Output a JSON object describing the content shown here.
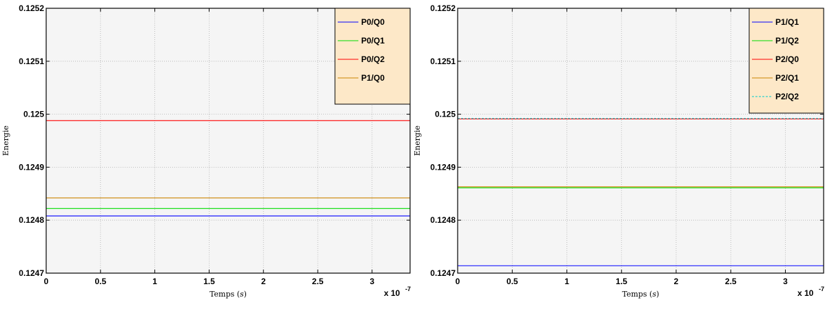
{
  "chart_data": [
    {
      "type": "line",
      "xlabel": "Temps (s)",
      "ylabel": "Energie",
      "x_multiplier_label": "x 10",
      "x_multiplier_exponent": "-7",
      "xlim": [
        0,
        3.35
      ],
      "ylim": [
        0.1247,
        0.1252
      ],
      "xticks": [
        0,
        0.5,
        1,
        1.5,
        2,
        2.5,
        3
      ],
      "xtick_labels": [
        "0",
        "0.5",
        "1",
        "1.5",
        "2",
        "2.5",
        "3"
      ],
      "yticks": [
        0.1247,
        0.1248,
        0.1249,
        0.125,
        0.1251,
        0.1252
      ],
      "ytick_labels": [
        "0.1247",
        "0.1248",
        "0.1249",
        "0.125",
        "0.1251",
        "0.1252"
      ],
      "grid": true,
      "legend_position": "top-right",
      "series": [
        {
          "name": "P0/Q0",
          "color": "#0000ff",
          "dash": "solid",
          "x": [
            0,
            3.35
          ],
          "y": [
            0.124808,
            0.124808
          ]
        },
        {
          "name": "P0/Q1",
          "color": "#00dd00",
          "dash": "solid",
          "x": [
            0,
            3.35
          ],
          "y": [
            0.124822,
            0.124822
          ]
        },
        {
          "name": "P0/Q2",
          "color": "#ff0000",
          "dash": "solid",
          "x": [
            0,
            3.35
          ],
          "y": [
            0.124988,
            0.124988
          ]
        },
        {
          "name": "P1/Q0",
          "color": "#cc8400",
          "dash": "solid",
          "x": [
            0,
            3.35
          ],
          "y": [
            0.124842,
            0.124842
          ]
        }
      ]
    },
    {
      "type": "line",
      "xlabel": "Temps (s)",
      "ylabel": "Energie",
      "x_multiplier_label": "x 10",
      "x_multiplier_exponent": "-7",
      "xlim": [
        0,
        3.35
      ],
      "ylim": [
        0.1247,
        0.1252
      ],
      "xticks": [
        0,
        0.5,
        1,
        1.5,
        2,
        2.5,
        3
      ],
      "xtick_labels": [
        "0",
        "0.5",
        "1",
        "1.5",
        "2",
        "2.5",
        "3"
      ],
      "yticks": [
        0.1247,
        0.1248,
        0.1249,
        0.125,
        0.1251,
        0.1252
      ],
      "ytick_labels": [
        "0.1247",
        "0.1248",
        "0.1249",
        "0.125",
        "0.1251",
        "0.1252"
      ],
      "grid": true,
      "legend_position": "top-right",
      "series": [
        {
          "name": "P1/Q1",
          "color": "#0000ff",
          "dash": "solid",
          "x": [
            0,
            3.35
          ],
          "y": [
            0.124714,
            0.124714
          ]
        },
        {
          "name": "P1/Q2",
          "color": "#00dd00",
          "dash": "solid",
          "x": [
            0,
            3.35
          ],
          "y": [
            0.124861,
            0.124861
          ]
        },
        {
          "name": "P2/Q0",
          "color": "#ff0000",
          "dash": "solid",
          "x": [
            0,
            3.35
          ],
          "y": [
            0.124991,
            0.124991
          ]
        },
        {
          "name": "P2/Q1",
          "color": "#cc8400",
          "dash": "solid",
          "x": [
            0,
            3.35
          ],
          "y": [
            0.124863,
            0.124863
          ]
        },
        {
          "name": "P2/Q2",
          "color": "#00cccc",
          "dash": "dashed",
          "x": [
            0,
            3.35
          ],
          "y": [
            0.124992,
            0.124992
          ]
        }
      ]
    }
  ],
  "style": {
    "plot_background": "#f5f5f5",
    "legend_background": "#fde8c8",
    "grid_color": "#b0b0b0"
  }
}
